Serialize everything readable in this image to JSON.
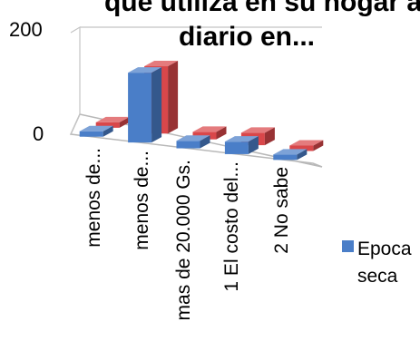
{
  "chart_data": {
    "type": "bar",
    "title_line1": "que utiliza en su hogar a",
    "title_line2": "diario en...",
    "categories": [
      "menos de...",
      "menos de...",
      "mas de 20.000 Gs.",
      "1 El costo del...",
      "2 No sabe"
    ],
    "series": [
      {
        "name": "Epoca seca",
        "color": "#4a7ec8",
        "values": [
          5,
          140,
          15,
          25,
          10
        ]
      },
      {
        "name": "",
        "color": "#d9474a",
        "values": [
          5,
          135,
          15,
          25,
          10
        ]
      }
    ],
    "yticks": [
      "200",
      "0"
    ],
    "ylim": [
      0,
      200
    ],
    "legend": {
      "label_line1": "Epoca",
      "label_line2": "seca",
      "position": "right"
    }
  }
}
